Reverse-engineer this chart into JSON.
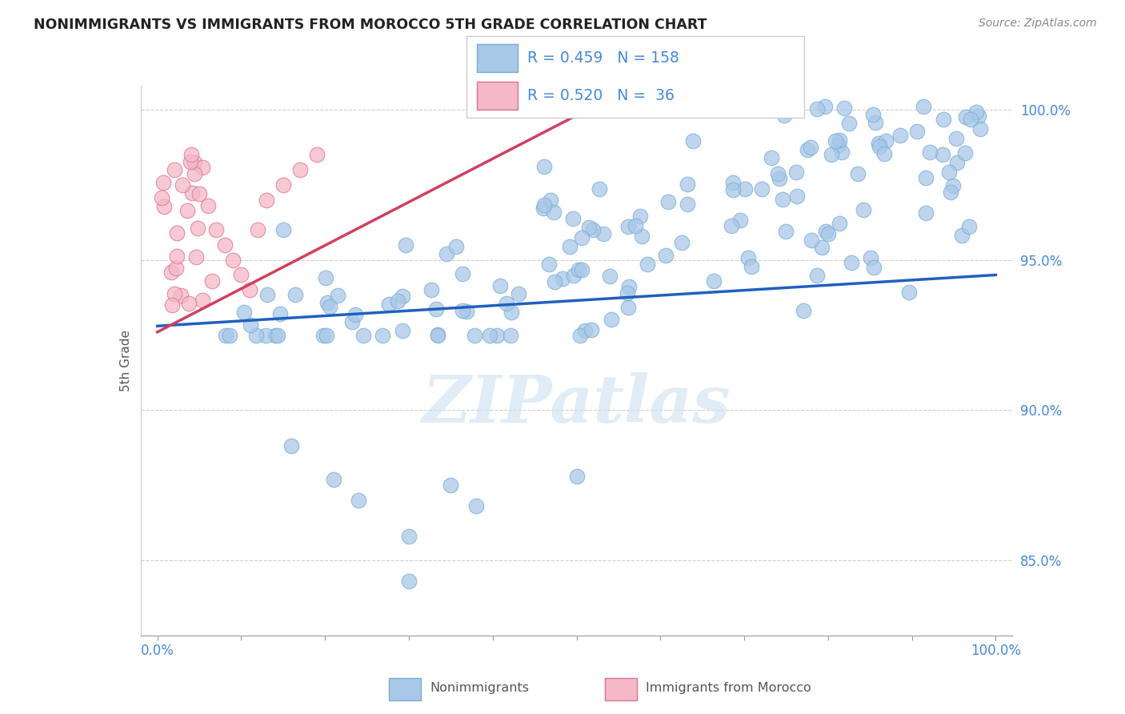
{
  "title": "NONIMMIGRANTS VS IMMIGRANTS FROM MOROCCO 5TH GRADE CORRELATION CHART",
  "source": "Source: ZipAtlas.com",
  "ylabel": "5th Grade",
  "xlim": [
    -0.02,
    1.02
  ],
  "ylim": [
    0.825,
    1.008
  ],
  "yticks": [
    0.85,
    0.9,
    0.95,
    1.0
  ],
  "ytick_labels": [
    "85.0%",
    "90.0%",
    "95.0%",
    "100.0%"
  ],
  "xtick_vals": [
    0.0,
    0.1,
    0.2,
    0.3,
    0.4,
    0.5,
    0.6,
    0.7,
    0.8,
    0.9,
    1.0
  ],
  "blue_R": 0.459,
  "blue_N": 158,
  "pink_R": 0.52,
  "pink_N": 36,
  "blue_color": "#a8c8e8",
  "blue_edge": "#7aadd4",
  "pink_color": "#f4b8c8",
  "pink_edge": "#e07090",
  "blue_line_color": "#2060c0",
  "pink_line_color": "#d04060",
  "legend_label_blue": "Nonimmigrants",
  "legend_label_pink": "Immigrants from Morocco",
  "watermark": "ZIPatlas",
  "background_color": "#ffffff",
  "grid_color": "#d0d0d0",
  "title_color": "#222222",
  "axis_tick_color": "#4488dd",
  "blue_regline_x": [
    0.0,
    1.0
  ],
  "blue_regline_y": [
    0.928,
    0.945
  ],
  "pink_regline_x": [
    0.0,
    0.52
  ],
  "pink_regline_y": [
    0.926,
    1.001
  ]
}
